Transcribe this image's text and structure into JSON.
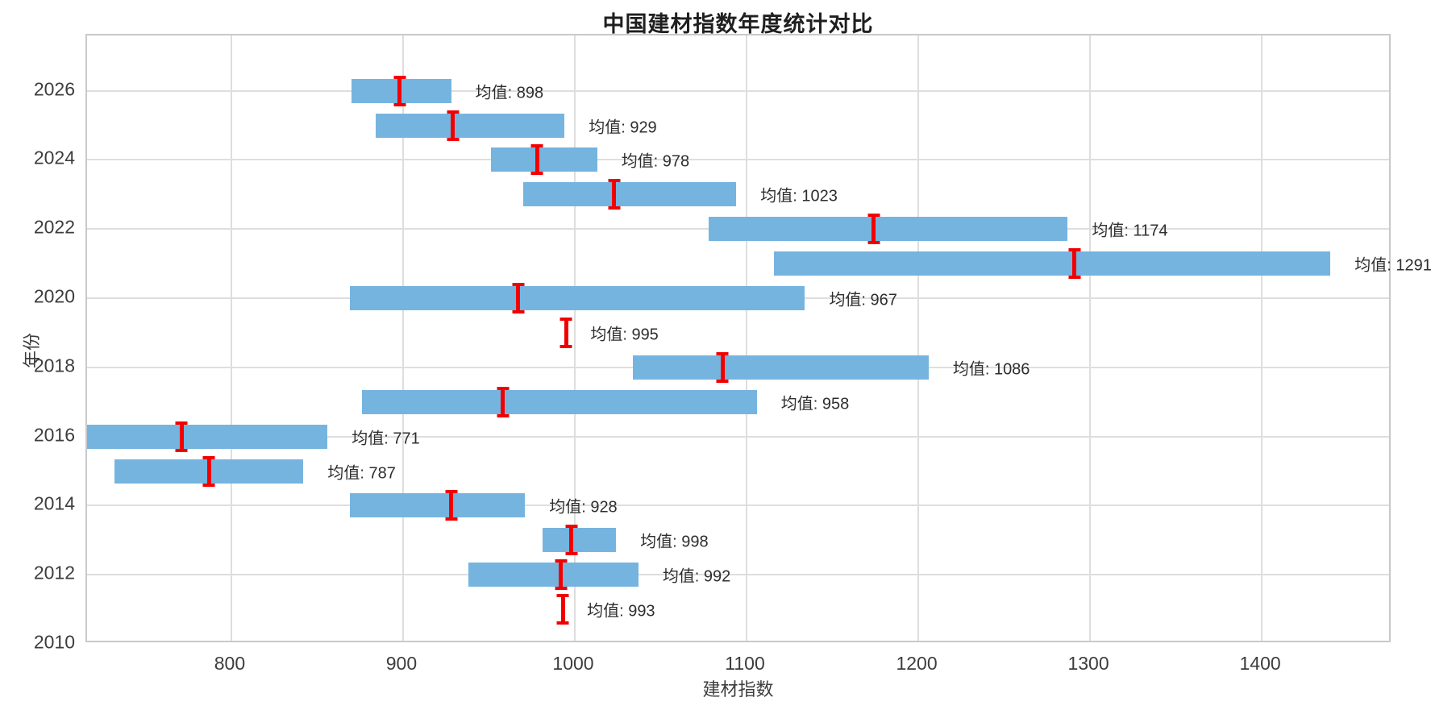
{
  "title": "中国建材指数年度统计对比",
  "chart_data": {
    "type": "bar",
    "subtype": "horizontal-range-bars-with-mean-markers",
    "title": "中国建材指数年度统计对比",
    "xlabel": "建材指数",
    "ylabel": "年份",
    "xlim": [
      716,
      1476
    ],
    "ylim": [
      2010,
      2027.6
    ],
    "x_ticks": [
      800,
      900,
      1000,
      1100,
      1200,
      1300,
      1400
    ],
    "y_ticks": [
      2010,
      2012,
      2014,
      2016,
      2018,
      2020,
      2022,
      2024,
      2026
    ],
    "grid": true,
    "legend_position": "none",
    "bar_color": "#76b4e0",
    "mean_marker_color": "#f20000",
    "mean_label_prefix": "均值: ",
    "rows": [
      {
        "year": 2026,
        "min": 870,
        "max": 928,
        "mean": 898,
        "label": "均值: 898"
      },
      {
        "year": 2025,
        "min": 884,
        "max": 994,
        "mean": 929,
        "label": "均值: 929"
      },
      {
        "year": 2024,
        "min": 951,
        "max": 1013,
        "mean": 978,
        "label": "均值: 978"
      },
      {
        "year": 2023,
        "min": 970,
        "max": 1094,
        "mean": 1023,
        "label": "均值: 1023"
      },
      {
        "year": 2022,
        "min": 1078,
        "max": 1287,
        "mean": 1174,
        "label": "均值: 1174"
      },
      {
        "year": 2021,
        "min": 1116,
        "max": 1440,
        "mean": 1291,
        "label": "均值: 1291"
      },
      {
        "year": 2020,
        "min": 869,
        "max": 1134,
        "mean": 967,
        "label": "均值: 967"
      },
      {
        "year": 2019,
        "min": 995,
        "max": 995,
        "mean": 995,
        "label": "均值: 995"
      },
      {
        "year": 2018,
        "min": 1034,
        "max": 1206,
        "mean": 1086,
        "label": "均值: 1086"
      },
      {
        "year": 2017,
        "min": 876,
        "max": 1106,
        "mean": 958,
        "label": "均值: 958"
      },
      {
        "year": 2016,
        "min": 712,
        "max": 856,
        "mean": 771,
        "label": "均值: 771"
      },
      {
        "year": 2015,
        "min": 732,
        "max": 842,
        "mean": 787,
        "label": "均值: 787"
      },
      {
        "year": 2014,
        "min": 869,
        "max": 971,
        "mean": 928,
        "label": "均值: 928"
      },
      {
        "year": 2013,
        "min": 981,
        "max": 1024,
        "mean": 998,
        "label": "均值: 998"
      },
      {
        "year": 2012,
        "min": 938,
        "max": 1037,
        "mean": 992,
        "label": "均值: 992"
      },
      {
        "year": 2011,
        "min": 993,
        "max": 993,
        "mean": 993,
        "label": "均值: 993"
      }
    ]
  }
}
